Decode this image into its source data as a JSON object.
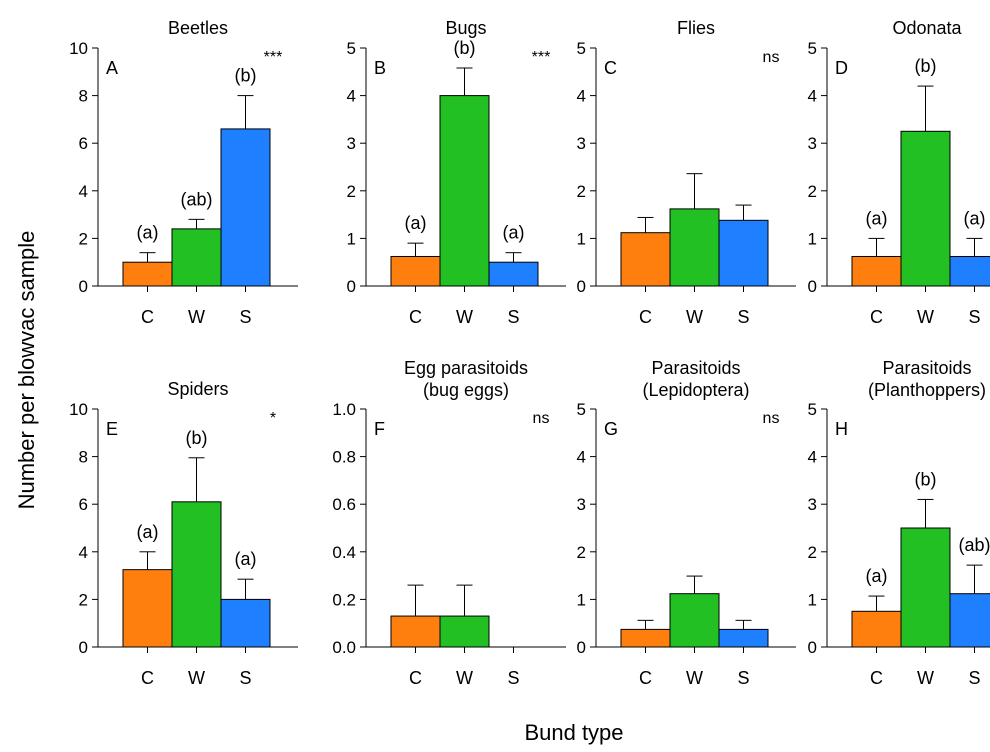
{
  "ylabel": "Number per blowvac sample",
  "xlabel": "Bund type",
  "colors": {
    "C": "#ff7f0e",
    "W": "#22c022",
    "S": "#1e7fff"
  },
  "chart_data": [
    {
      "type": "bar",
      "panel": "A",
      "title": [
        "Beetles"
      ],
      "significance": "***",
      "ylim": [
        0,
        10
      ],
      "yticks": [
        "0",
        "2",
        "4",
        "6",
        "8",
        "10"
      ],
      "categories": [
        "C",
        "W",
        "S"
      ],
      "values": [
        1.0,
        2.4,
        6.6
      ],
      "errors": [
        0.4,
        0.4,
        1.4
      ],
      "letters": [
        "(a)",
        "(ab)",
        "(b)"
      ]
    },
    {
      "type": "bar",
      "panel": "B",
      "title": [
        "Bugs"
      ],
      "significance": "***",
      "ylim": [
        0,
        5
      ],
      "yticks": [
        "0",
        "1",
        "2",
        "3",
        "4",
        "5"
      ],
      "categories": [
        "C",
        "W",
        "S"
      ],
      "values": [
        0.62,
        4.0,
        0.5
      ],
      "errors": [
        0.28,
        0.58,
        0.2
      ],
      "letters": [
        "(a)",
        "(b)",
        "(a)"
      ]
    },
    {
      "type": "bar",
      "panel": "C",
      "title": [
        "Flies"
      ],
      "significance": "ns",
      "ylim": [
        0,
        5
      ],
      "yticks": [
        "0",
        "1",
        "2",
        "3",
        "4",
        "5"
      ],
      "categories": [
        "C",
        "W",
        "S"
      ],
      "values": [
        1.12,
        1.62,
        1.38
      ],
      "errors": [
        0.32,
        0.74,
        0.32
      ],
      "letters": [
        "",
        "",
        ""
      ]
    },
    {
      "type": "bar",
      "panel": "D",
      "title": [
        "Odonata"
      ],
      "significance": "*",
      "ylim": [
        0,
        5
      ],
      "yticks": [
        "0",
        "1",
        "2",
        "3",
        "4",
        "5"
      ],
      "categories": [
        "C",
        "W",
        "S"
      ],
      "values": [
        0.62,
        3.25,
        0.62
      ],
      "errors": [
        0.38,
        0.95,
        0.38
      ],
      "letters": [
        "(a)",
        "(b)",
        "(a)"
      ]
    },
    {
      "type": "bar",
      "panel": "E",
      "title": [
        "Spiders"
      ],
      "significance": "*",
      "ylim": [
        0,
        10
      ],
      "yticks": [
        "0",
        "2",
        "4",
        "6",
        "8",
        "10"
      ],
      "categories": [
        "C",
        "W",
        "S"
      ],
      "values": [
        3.25,
        6.1,
        2.0
      ],
      "errors": [
        0.75,
        1.85,
        0.85
      ],
      "letters": [
        "(a)",
        "(b)",
        "(a)"
      ]
    },
    {
      "type": "bar",
      "panel": "F",
      "title": [
        "Egg parasitoids",
        "(bug eggs)"
      ],
      "significance": "ns",
      "ylim": [
        0,
        1.0
      ],
      "yticks": [
        "0.0",
        "0.2",
        "0.4",
        "0.6",
        "0.8",
        "1.0"
      ],
      "categories": [
        "C",
        "W",
        "S"
      ],
      "values": [
        0.13,
        0.13,
        0
      ],
      "errors": [
        0.13,
        0.13,
        0
      ],
      "letters": [
        "",
        "",
        ""
      ]
    },
    {
      "type": "bar",
      "panel": "G",
      "title": [
        "Parasitoids",
        "(Lepidoptera)"
      ],
      "significance": "ns",
      "ylim": [
        0,
        5
      ],
      "yticks": [
        "0",
        "1",
        "2",
        "3",
        "4",
        "5"
      ],
      "categories": [
        "C",
        "W",
        "S"
      ],
      "values": [
        0.37,
        1.12,
        0.37
      ],
      "errors": [
        0.19,
        0.37,
        0.19
      ],
      "letters": [
        "",
        "",
        ""
      ]
    },
    {
      "type": "bar",
      "panel": "H",
      "title": [
        "Parasitoids",
        "(Planthoppers)"
      ],
      "significance": "*",
      "ylim": [
        0,
        5
      ],
      "yticks": [
        "0",
        "1",
        "2",
        "3",
        "4",
        "5"
      ],
      "categories": [
        "C",
        "W",
        "S"
      ],
      "values": [
        0.75,
        2.5,
        1.12
      ],
      "errors": [
        0.32,
        0.6,
        0.6
      ],
      "letters": [
        "(a)",
        "(b)",
        "(ab)"
      ]
    }
  ]
}
